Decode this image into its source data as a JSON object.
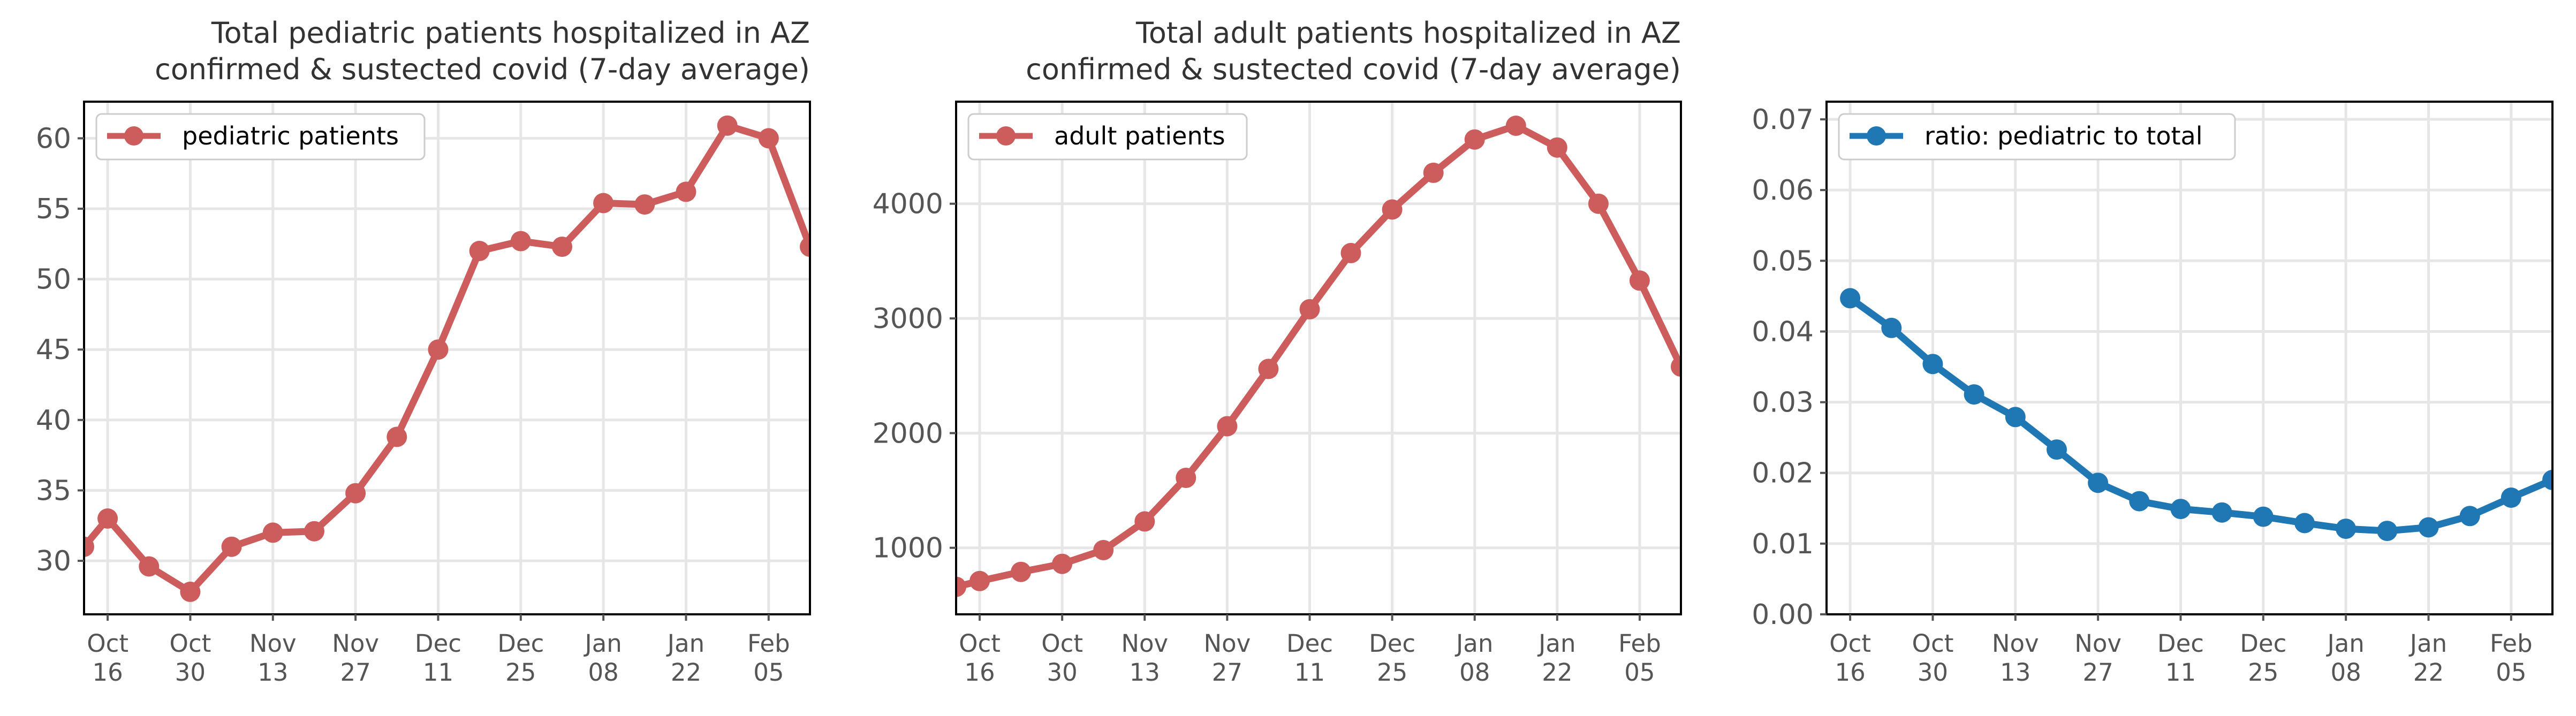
{
  "chart_data": [
    {
      "type": "line",
      "title": "Total pediatric patients hospitalized in AZ",
      "subtitle": "confirmed & sustected covid (7-day average)",
      "x": [
        "2020-10-12",
        "2020-10-16",
        "2020-10-23",
        "2020-10-30",
        "2020-11-06",
        "2020-11-13",
        "2020-11-20",
        "2020-11-27",
        "2020-12-04",
        "2020-12-11",
        "2020-12-18",
        "2020-12-25",
        "2021-01-01",
        "2021-01-08",
        "2021-01-15",
        "2021-01-22",
        "2021-01-29",
        "2021-02-05",
        "2021-02-12"
      ],
      "series": [
        {
          "name": "pediatric patients",
          "color": "#cd5c5c",
          "values": [
            31.0,
            33.0,
            29.6,
            27.8,
            31.0,
            32.0,
            32.1,
            34.8,
            38.8,
            45.0,
            52.0,
            52.7,
            52.3,
            55.4,
            55.3,
            56.2,
            60.9,
            60.0,
            52.3
          ]
        }
      ],
      "xticks": [
        {
          "date": "2020-10-16",
          "line1": "Oct",
          "line2": "16"
        },
        {
          "date": "2020-10-30",
          "line1": "Oct",
          "line2": "30"
        },
        {
          "date": "2020-11-13",
          "line1": "Nov",
          "line2": "13"
        },
        {
          "date": "2020-11-27",
          "line1": "Nov",
          "line2": "27"
        },
        {
          "date": "2020-12-11",
          "line1": "Dec",
          "line2": "11"
        },
        {
          "date": "2020-12-25",
          "line1": "Dec",
          "line2": "25"
        },
        {
          "date": "2021-01-08",
          "line1": "Jan",
          "line2": "08"
        },
        {
          "date": "2021-01-22",
          "line1": "Jan",
          "line2": "22"
        },
        {
          "date": "2021-02-05",
          "line1": "Feb",
          "line2": "05"
        }
      ],
      "yticks": [
        30,
        35,
        40,
        45,
        50,
        55,
        60
      ],
      "ytick_labels": [
        "30",
        "35",
        "40",
        "45",
        "50",
        "55",
        "60"
      ],
      "xlim": [
        "2020-10-12",
        "2021-02-12"
      ],
      "ylim": [
        26.2,
        62.6
      ],
      "grid": true,
      "legend_position": "top-left"
    },
    {
      "type": "line",
      "title": "Total adult patients hospitalized in AZ",
      "subtitle": "confirmed & sustected covid (7-day average)",
      "x": [
        "2020-10-12",
        "2020-10-16",
        "2020-10-23",
        "2020-10-30",
        "2020-11-06",
        "2020-11-13",
        "2020-11-20",
        "2020-11-27",
        "2020-12-04",
        "2020-12-11",
        "2020-12-18",
        "2020-12-25",
        "2021-01-01",
        "2021-01-08",
        "2021-01-15",
        "2021-01-22",
        "2021-01-29",
        "2021-02-05",
        "2021-02-12"
      ],
      "series": [
        {
          "name": "adult patients",
          "color": "#cd5c5c",
          "values": [
            660,
            710,
            790,
            860,
            980,
            1230,
            1610,
            2060,
            2560,
            3080,
            3570,
            3950,
            4270,
            4560,
            4680,
            4490,
            4000,
            3330,
            2580
          ]
        }
      ],
      "xticks": [
        {
          "date": "2020-10-16",
          "line1": "Oct",
          "line2": "16"
        },
        {
          "date": "2020-10-30",
          "line1": "Oct",
          "line2": "30"
        },
        {
          "date": "2020-11-13",
          "line1": "Nov",
          "line2": "13"
        },
        {
          "date": "2020-11-27",
          "line1": "Nov",
          "line2": "27"
        },
        {
          "date": "2020-12-11",
          "line1": "Dec",
          "line2": "11"
        },
        {
          "date": "2020-12-25",
          "line1": "Dec",
          "line2": "25"
        },
        {
          "date": "2021-01-08",
          "line1": "Jan",
          "line2": "08"
        },
        {
          "date": "2021-01-22",
          "line1": "Jan",
          "line2": "22"
        },
        {
          "date": "2021-02-05",
          "line1": "Feb",
          "line2": "05"
        }
      ],
      "yticks": [
        1000,
        2000,
        3000,
        4000
      ],
      "ytick_labels": [
        "1000",
        "2000",
        "3000",
        "4000"
      ],
      "xlim": [
        "2020-10-12",
        "2021-02-12"
      ],
      "ylim": [
        420,
        4890
      ],
      "grid": true,
      "legend_position": "top-left"
    },
    {
      "type": "line",
      "title": "",
      "subtitle": "",
      "x": [
        "2020-10-16",
        "2020-10-23",
        "2020-10-30",
        "2020-11-06",
        "2020-11-13",
        "2020-11-20",
        "2020-11-27",
        "2020-12-04",
        "2020-12-11",
        "2020-12-18",
        "2020-12-25",
        "2021-01-01",
        "2021-01-08",
        "2021-01-15",
        "2021-01-22",
        "2021-01-29",
        "2021-02-05",
        "2021-02-12"
      ],
      "series": [
        {
          "name": "ratio: pediatric to total",
          "color": "#1f77b4",
          "values": [
            0.0447,
            0.0405,
            0.0354,
            0.0311,
            0.0279,
            0.0233,
            0.0186,
            0.016,
            0.0149,
            0.0144,
            0.0138,
            0.0129,
            0.0121,
            0.0118,
            0.0123,
            0.0139,
            0.0165,
            0.019
          ]
        }
      ],
      "xticks": [
        {
          "date": "2020-10-16",
          "line1": "Oct",
          "line2": "16"
        },
        {
          "date": "2020-10-30",
          "line1": "Oct",
          "line2": "30"
        },
        {
          "date": "2020-11-13",
          "line1": "Nov",
          "line2": "13"
        },
        {
          "date": "2020-11-27",
          "line1": "Nov",
          "line2": "27"
        },
        {
          "date": "2020-12-11",
          "line1": "Dec",
          "line2": "11"
        },
        {
          "date": "2020-12-25",
          "line1": "Dec",
          "line2": "25"
        },
        {
          "date": "2021-01-08",
          "line1": "Jan",
          "line2": "08"
        },
        {
          "date": "2021-01-22",
          "line1": "Jan",
          "line2": "22"
        },
        {
          "date": "2021-02-05",
          "line1": "Feb",
          "line2": "05"
        }
      ],
      "yticks": [
        0.0,
        0.01,
        0.02,
        0.03,
        0.04,
        0.05,
        0.06,
        0.07
      ],
      "ytick_labels": [
        "0.00",
        "0.01",
        "0.02",
        "0.03",
        "0.04",
        "0.05",
        "0.06",
        "0.07"
      ],
      "xlim": [
        "2020-10-12",
        "2021-02-12"
      ],
      "ylim": [
        0,
        0.0725
      ],
      "grid": true,
      "legend_position": "top-left"
    }
  ]
}
